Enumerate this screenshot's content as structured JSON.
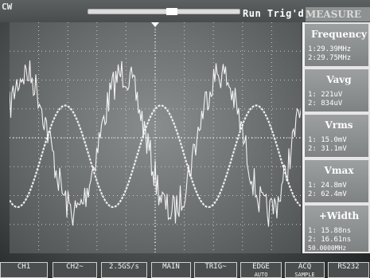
{
  "header": {
    "channel_tag": "CW",
    "run_status": "Run Trig'd",
    "menu_title": "MEASURE"
  },
  "measurements": [
    {
      "label": "Frequency",
      "lines": [
        "1:29.39MHz",
        "2:29.75MHz"
      ]
    },
    {
      "label": "Vavg",
      "lines": [
        "1:  221uV",
        "2:  834uV"
      ]
    },
    {
      "label": "Vrms",
      "lines": [
        "1: 15.0mV",
        "2: 31.1mV"
      ]
    },
    {
      "label": "Vmax",
      "lines": [
        "1: 24.8mV",
        "2: 62.4mV"
      ]
    },
    {
      "label": "+Width",
      "lines": [
        "1: 15.88ns",
        "2: 16.61ns"
      ]
    }
  ],
  "timebase_readout": "50.0000MHz",
  "softkeys": [
    {
      "label": "CH1",
      "sub": ""
    },
    {
      "label": "CH2~",
      "sub": ""
    },
    {
      "label": "2.5GS/s",
      "sub": ""
    },
    {
      "label": "MAIN",
      "sub": ""
    },
    {
      "label": "TRIG~",
      "sub": ""
    },
    {
      "label": "EDGE",
      "sub": "AUTO"
    },
    {
      "label": "ACQ",
      "sub": "SAMPLE"
    },
    {
      "label": "RS232",
      "sub": ""
    }
  ],
  "trace_colors": {
    "ch1": "#ffffff",
    "ch2": "#f2f2f2",
    "grid": "#e0e0e0"
  }
}
